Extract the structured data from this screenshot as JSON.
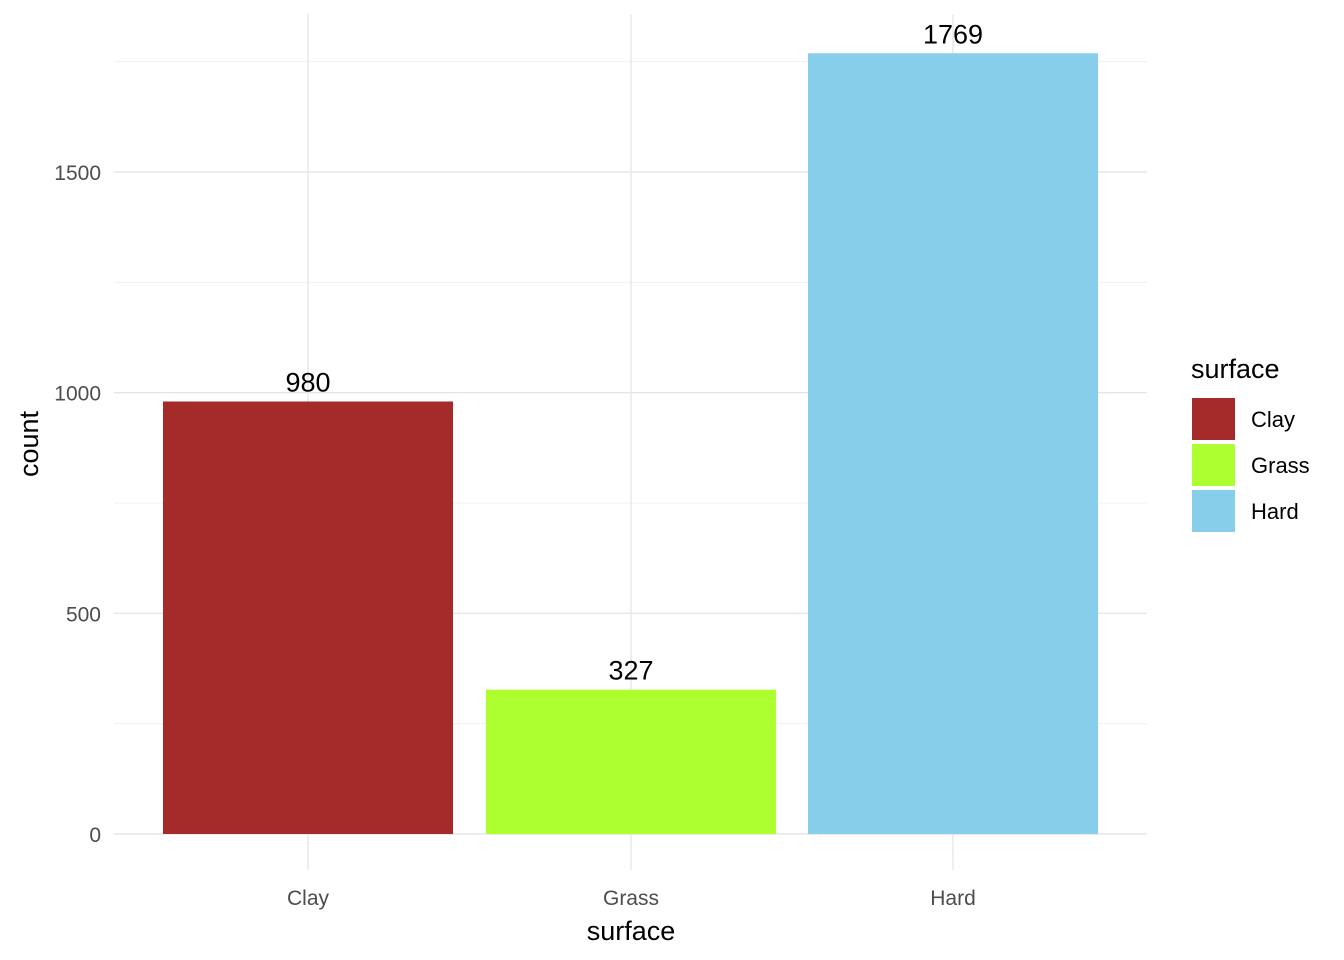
{
  "chart_data": {
    "type": "bar",
    "categories": [
      "Clay",
      "Grass",
      "Hard"
    ],
    "values": [
      980,
      327,
      1769
    ],
    "data_labels": [
      "980",
      "327",
      "1769"
    ],
    "colors": [
      "#A52A2A",
      "#ADFF2F",
      "#87CEEB"
    ],
    "xlabel": "surface",
    "ylabel": "count",
    "ylim": [
      0,
      1770
    ],
    "y_ticks": [
      0,
      500,
      1000,
      1500
    ],
    "y_tick_labels": [
      "0",
      "500",
      "1000",
      "1500"
    ],
    "grid": true,
    "legend": {
      "title": "surface",
      "placement": "right",
      "entries": [
        "Clay",
        "Grass",
        "Hard"
      ]
    }
  }
}
